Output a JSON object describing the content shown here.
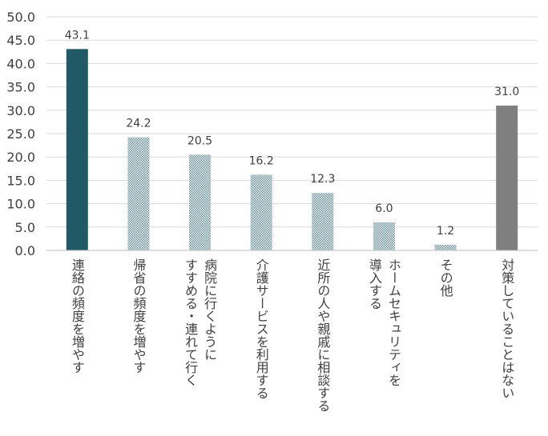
{
  "chart_data": {
    "type": "bar",
    "title": "",
    "xlabel": "",
    "ylabel": "",
    "ylim": [
      0,
      50
    ],
    "ytick_step": 5,
    "grid": true,
    "legend": "none",
    "categories": [
      [
        "連絡の頻度を増やす"
      ],
      [
        "帰省の頻度を増やす"
      ],
      [
        "病院に行くように",
        "すすめる・連れて行く"
      ],
      [
        "介護サービスを利用する"
      ],
      [
        "近所の人や親戚に相談する"
      ],
      [
        "ホームセキュリティを",
        "導入する"
      ],
      [
        "その他"
      ],
      [
        "対策していることはない"
      ]
    ],
    "values": [
      43.1,
      24.2,
      20.5,
      16.2,
      12.3,
      6.0,
      1.2,
      31.0
    ],
    "value_labels": [
      "43.1",
      "24.2",
      "20.5",
      "16.2",
      "12.3",
      "6.0",
      "1.2",
      "31.0"
    ],
    "bar_styles": [
      "solid-teal",
      "pattern",
      "pattern",
      "pattern",
      "pattern",
      "pattern",
      "pattern",
      "solid-gray"
    ],
    "colors": {
      "solid_teal": "#215967",
      "pattern_fg": "#5d8a94",
      "pattern_bg": "#ffffff",
      "solid_gray": "#7f7f7f",
      "grid": "#d9d9d9",
      "axis": "#bfbfbf",
      "text": "#404040"
    }
  }
}
